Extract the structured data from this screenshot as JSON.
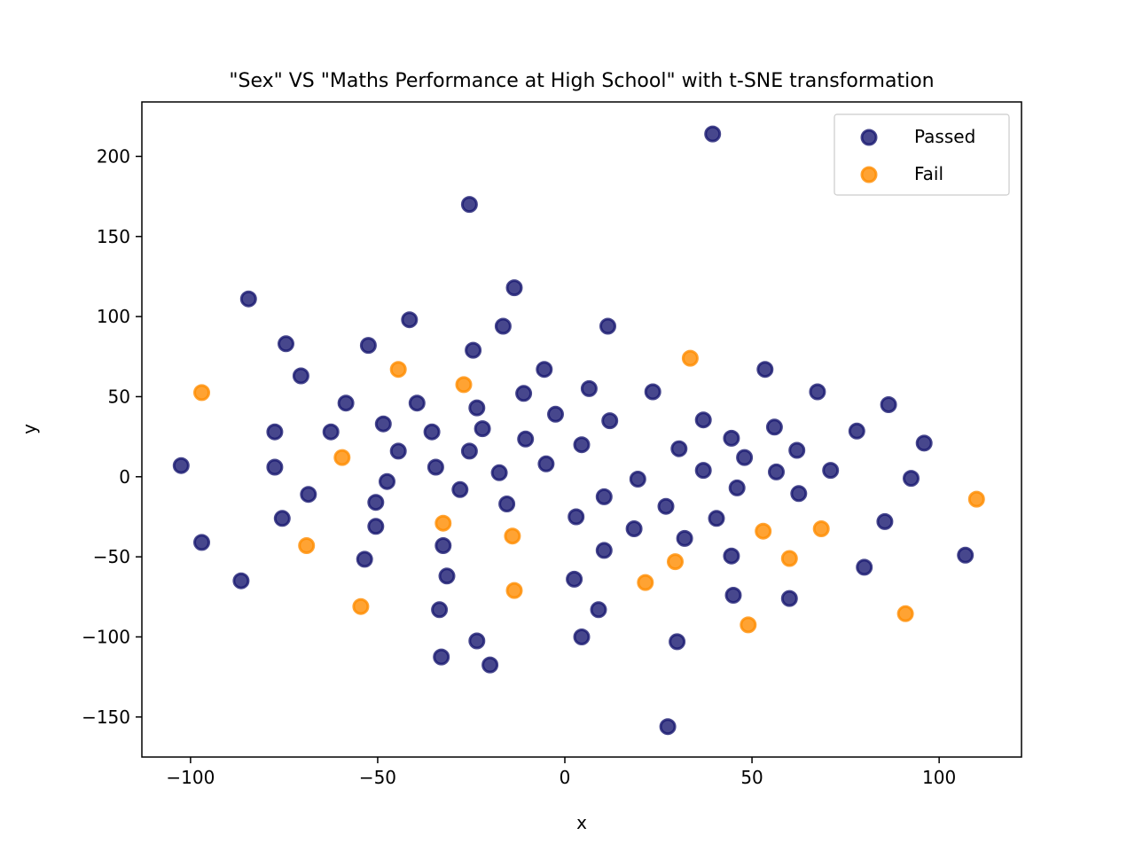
{
  "chart_data": {
    "type": "scatter",
    "title": "\"Sex\" VS \"Maths Performance at High School\" with t-SNE transformation",
    "xlabel": "x",
    "ylabel": "y",
    "xlim": [
      -113,
      122
    ],
    "ylim": [
      -175,
      234
    ],
    "x_ticks": [
      -100,
      -50,
      0,
      50,
      100
    ],
    "y_ticks": [
      -150,
      -100,
      -50,
      0,
      50,
      100,
      150,
      200
    ],
    "x_tick_labels": [
      "−100",
      "−50",
      "0",
      "50",
      "100"
    ],
    "y_tick_labels": [
      "−150",
      "−100",
      "−50",
      "0",
      "50",
      "100",
      "150",
      "200"
    ],
    "grid": false,
    "legend_position": "top-right",
    "series": [
      {
        "name": "Passed",
        "color": "#191970",
        "points": [
          [
            39.5,
            214
          ],
          [
            -25.5,
            170
          ],
          [
            -84.5,
            111
          ],
          [
            -13.5,
            118
          ],
          [
            -41.5,
            98
          ],
          [
            -16.5,
            94
          ],
          [
            11.5,
            94
          ],
          [
            -74.5,
            83
          ],
          [
            -52.5,
            82
          ],
          [
            -24.5,
            79
          ],
          [
            -70.5,
            63
          ],
          [
            -5.5,
            67
          ],
          [
            53.5,
            67
          ],
          [
            6.5,
            55
          ],
          [
            -11,
            52
          ],
          [
            23.5,
            53
          ],
          [
            67.5,
            53
          ],
          [
            -58.5,
            46
          ],
          [
            -39.5,
            46
          ],
          [
            -23.5,
            43
          ],
          [
            86.5,
            45
          ],
          [
            -2.5,
            39
          ],
          [
            12,
            35
          ],
          [
            37,
            35.5
          ],
          [
            -48.5,
            33
          ],
          [
            -77.5,
            28
          ],
          [
            -62.5,
            28
          ],
          [
            -35.5,
            28
          ],
          [
            -22,
            30
          ],
          [
            56,
            31
          ],
          [
            78,
            28.5
          ],
          [
            -10.5,
            23.5
          ],
          [
            4.5,
            20
          ],
          [
            44.5,
            24
          ],
          [
            96,
            21
          ],
          [
            -44.5,
            16
          ],
          [
            -25.5,
            16
          ],
          [
            30.5,
            17.5
          ],
          [
            62,
            16.5
          ],
          [
            48,
            12
          ],
          [
            -5,
            8
          ],
          [
            -102.5,
            7
          ],
          [
            -77.5,
            6
          ],
          [
            -34.5,
            6
          ],
          [
            -17.5,
            2.5
          ],
          [
            37,
            4
          ],
          [
            56.5,
            3
          ],
          [
            71,
            4
          ],
          [
            -47.5,
            -3
          ],
          [
            19.5,
            -1.5
          ],
          [
            92.5,
            -1
          ],
          [
            -68.5,
            -11
          ],
          [
            -28,
            -8
          ],
          [
            10.5,
            -12.5
          ],
          [
            46,
            -7
          ],
          [
            62.5,
            -10.5
          ],
          [
            -50.5,
            -16
          ],
          [
            -15.5,
            -17
          ],
          [
            27,
            -18.5
          ],
          [
            -75.5,
            -26
          ],
          [
            3,
            -25
          ],
          [
            40.5,
            -26
          ],
          [
            85.5,
            -28
          ],
          [
            -50.5,
            -31
          ],
          [
            18.5,
            -32.5
          ],
          [
            -97,
            -41
          ],
          [
            -32.5,
            -43
          ],
          [
            32,
            -38.5
          ],
          [
            10.5,
            -46
          ],
          [
            44.5,
            -49.5
          ],
          [
            107,
            -49
          ],
          [
            -53.5,
            -51.5
          ],
          [
            -31.5,
            -62
          ],
          [
            2.5,
            -64
          ],
          [
            80,
            -56.5
          ],
          [
            -86.5,
            -65
          ],
          [
            45,
            -74
          ],
          [
            60,
            -76
          ],
          [
            -33.5,
            -83
          ],
          [
            9,
            -83
          ],
          [
            4.5,
            -100
          ],
          [
            -23.5,
            -102.5
          ],
          [
            30,
            -103
          ],
          [
            -33,
            -112.5
          ],
          [
            -20,
            -117.5
          ],
          [
            27.5,
            -156
          ]
        ]
      },
      {
        "name": "Fail",
        "color": "#ff8c00",
        "points": [
          [
            -97,
            52.5
          ],
          [
            -44.5,
            67
          ],
          [
            -27,
            57.5
          ],
          [
            33.5,
            74
          ],
          [
            -59.5,
            12
          ],
          [
            110,
            -14
          ],
          [
            -32.5,
            -29
          ],
          [
            -14,
            -37
          ],
          [
            53,
            -34
          ],
          [
            68.5,
            -32.5
          ],
          [
            -69,
            -43
          ],
          [
            29.5,
            -53
          ],
          [
            60,
            -51
          ],
          [
            -13.5,
            -71
          ],
          [
            21.5,
            -66
          ],
          [
            -54.5,
            -81
          ],
          [
            49,
            -92.5
          ],
          [
            91,
            -85.5
          ]
        ]
      }
    ]
  }
}
